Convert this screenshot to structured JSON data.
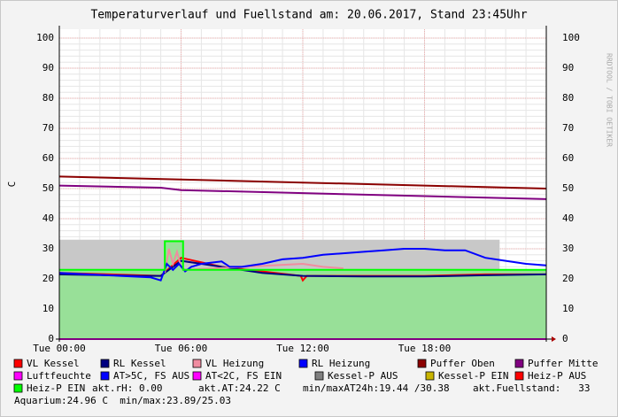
{
  "chart_data": {
    "type": "line",
    "title": "Temperaturverlauf und Fuellstand am: 20.06.2017, Stand 23:45Uhr",
    "y_label": "C",
    "watermark": "RRDTOOL / TOBI OETIKER",
    "xlim": [
      0,
      24
    ],
    "xticks": [
      {
        "value": 0,
        "label": "Tue 00:00"
      },
      {
        "value": 6,
        "label": "Tue 06:00"
      },
      {
        "value": 12,
        "label": "Tue 12:00"
      },
      {
        "value": 18,
        "label": "Tue 18:00"
      }
    ],
    "ylim": [
      0,
      100
    ],
    "yticks": [
      0,
      10,
      20,
      30,
      40,
      50,
      60,
      70,
      80,
      90,
      100
    ],
    "grid": true,
    "series": [
      {
        "name": "VL Kessel",
        "color": "#ff0000",
        "x": [
          0,
          5,
          6,
          8,
          11.9,
          12,
          12.2,
          15,
          18,
          21,
          24
        ],
        "values": [
          22,
          21,
          27,
          24,
          21,
          19.5,
          21,
          21,
          21,
          21.5,
          21.5
        ]
      },
      {
        "name": "RL Kessel",
        "color": "#000080",
        "x": [
          0,
          4,
          5,
          6,
          8,
          10,
          12,
          15,
          18,
          21,
          24
        ],
        "values": [
          21.5,
          21,
          21,
          26,
          24,
          22,
          21,
          20.8,
          20.8,
          21.2,
          21.5
        ]
      },
      {
        "name": "VL Heizung",
        "color": "#f08ca0",
        "x": [
          5.2,
          5.4,
          5.6,
          5.8,
          6,
          6.2,
          12,
          13,
          14
        ],
        "values": [
          22,
          30,
          25,
          29,
          24,
          23,
          25,
          24,
          23.5
        ]
      },
      {
        "name": "RL Heizung",
        "color": "#0000ff",
        "x": [
          0,
          3,
          4.5,
          5,
          5.3,
          5.6,
          5.9,
          6.2,
          6.5,
          7,
          8,
          8.4,
          9,
          10,
          11,
          12,
          13,
          14,
          15,
          16,
          17,
          18,
          19,
          20,
          21,
          22,
          23,
          24
        ],
        "values": [
          22,
          21,
          20.5,
          19.5,
          25,
          23,
          25,
          22.5,
          24,
          25,
          25.8,
          24,
          24,
          25,
          26.5,
          27,
          28,
          28.5,
          29,
          29.5,
          30,
          30,
          29.5,
          29.5,
          27,
          26,
          25,
          24.5
        ]
      },
      {
        "name": "Puffer Oben",
        "color": "#8b0000",
        "x": [
          0,
          6,
          12,
          18,
          24
        ],
        "values": [
          54,
          53,
          52,
          51,
          50
        ]
      },
      {
        "name": "Puffer Mitte",
        "color": "#800080",
        "x": [
          0,
          5,
          6,
          12,
          18,
          24
        ],
        "values": [
          51,
          50.3,
          49.5,
          48.5,
          47.5,
          46.5
        ]
      },
      {
        "name": "Luftfeuchte",
        "color": "#ff00ff",
        "x": [
          0,
          24
        ],
        "values": [
          0,
          0
        ]
      },
      {
        "name": "AT>5C, FS AUS",
        "color": "#0000ff"
      },
      {
        "name": "AT<2C, FS EIN",
        "color": "#ff00ff"
      },
      {
        "name": "Kessel-P AUS",
        "color": "#808080",
        "fill": "#c8c8c8",
        "x": [
          0,
          21.7
        ],
        "values": [
          33,
          33
        ]
      },
      {
        "name": "Kessel-P EIN",
        "color": "#c8b400"
      },
      {
        "name": "Heiz-P AUS",
        "color": "#ff0000"
      },
      {
        "name": "Heiz-P EIN",
        "color": "#00ff00",
        "fill": "#98e098",
        "x": [
          0,
          5.2,
          5.2,
          6.1,
          6.1,
          24
        ],
        "values": [
          23,
          23,
          32.5,
          32.5,
          23,
          23
        ]
      }
    ],
    "comments": [
      "akt.rH: 0.00",
      "akt.AT:24.22 C",
      "min/maxAT24h:19.44 /30.38",
      "akt.Fuellstand:   33",
      "Aquarium:24.96 C  min/max:23.89/25.03"
    ]
  }
}
